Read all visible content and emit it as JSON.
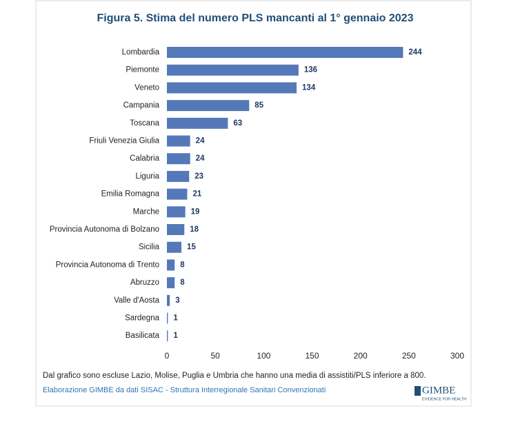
{
  "chart_data": {
    "type": "barh",
    "title": "Figura 5. Stima del numero PLS mancanti al 1° gennaio 2023",
    "categories": [
      "Lombardia",
      "Piemonte",
      "Veneto",
      "Campania",
      "Toscana",
      "Friuli Venezia Giulia",
      "Calabria",
      "Liguria",
      "Emilia Romagna",
      "Marche",
      "Provincia Autonoma di Bolzano",
      "Sicilia",
      "Provincia Autonoma di Trento",
      "Abruzzo",
      "Valle d'Aosta",
      "Sardegna",
      "Basilicata"
    ],
    "values": [
      244,
      136,
      134,
      85,
      63,
      24,
      24,
      23,
      21,
      19,
      18,
      15,
      8,
      8,
      3,
      1,
      1
    ],
    "color": "#5578b8",
    "xlim": [
      0,
      300
    ],
    "xticks": [
      0,
      50,
      100,
      150,
      200,
      250,
      300
    ],
    "grid": false
  },
  "note": "Dal grafico sono escluse Lazio, Molise, Puglia e Umbria che hanno una media di assistiti/PLS inferiore a 800.",
  "source": "Elaborazione GIMBE da dati SISAC - Struttura Interregionale Sanitari Convenzionati",
  "logo": {
    "name": "GIMBE",
    "tagline": "EVIDENCE FOR HEALTH"
  }
}
